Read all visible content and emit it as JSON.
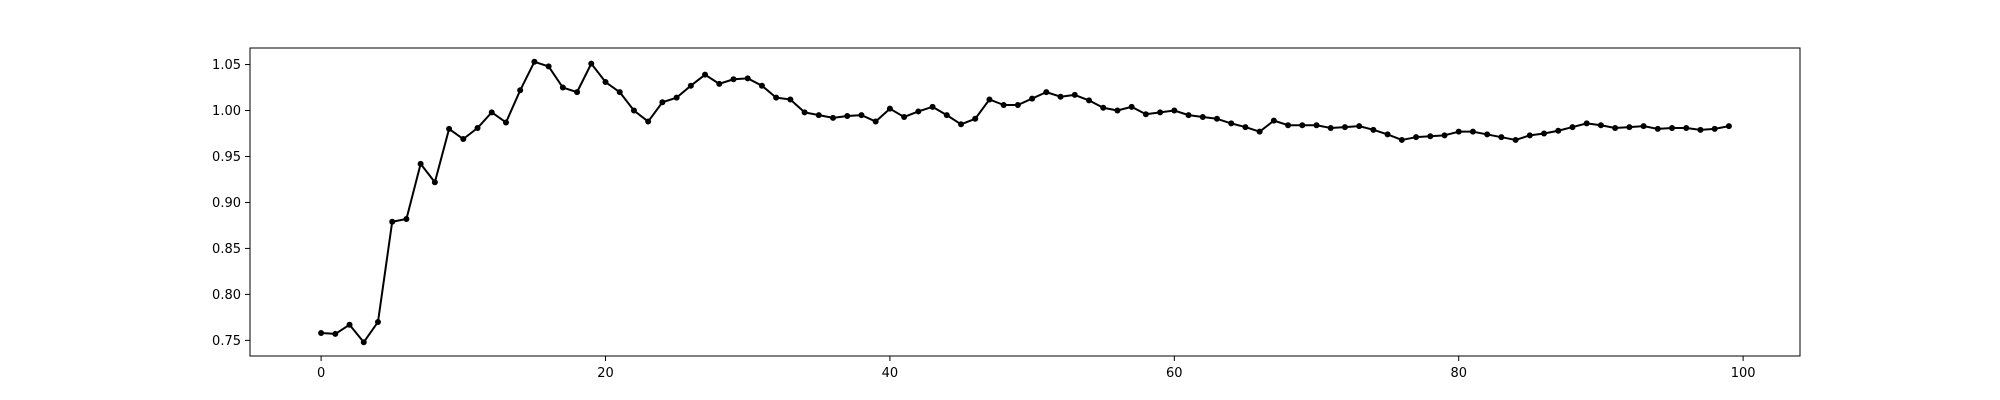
{
  "chart_data": {
    "type": "line",
    "title": "",
    "xlabel": "",
    "ylabel": "",
    "xlim": [
      -5,
      104
    ],
    "ylim": [
      0.733,
      1.068
    ],
    "xticks": [
      0,
      20,
      40,
      60,
      80,
      100
    ],
    "yticks": [
      0.75,
      0.8,
      0.85,
      0.9,
      0.95,
      1.0,
      1.05
    ],
    "xtick_labels": [
      "0",
      "20",
      "40",
      "60",
      "80",
      "100"
    ],
    "ytick_labels": [
      "0.75",
      "0.80",
      "0.85",
      "0.90",
      "0.95",
      "1.00",
      "1.05"
    ],
    "grid": false,
    "legend": "none",
    "series": [
      {
        "color": "#000000",
        "marker": "circle",
        "x": [
          0,
          1,
          2,
          3,
          4,
          5,
          6,
          7,
          8,
          9,
          10,
          11,
          12,
          13,
          14,
          15,
          16,
          17,
          18,
          19,
          20,
          21,
          22,
          23,
          24,
          25,
          26,
          27,
          28,
          29,
          30,
          31,
          32,
          33,
          34,
          35,
          36,
          37,
          38,
          39,
          40,
          41,
          42,
          43,
          44,
          45,
          46,
          47,
          48,
          49,
          50,
          51,
          52,
          53,
          54,
          55,
          56,
          57,
          58,
          59,
          60,
          61,
          62,
          63,
          64,
          65,
          66,
          67,
          68,
          69,
          70,
          71,
          72,
          73,
          74,
          75,
          76,
          77,
          78,
          79,
          80,
          81,
          82,
          83,
          84,
          85,
          86,
          87,
          88,
          89,
          90,
          91,
          92,
          93,
          94,
          95,
          96,
          97,
          98,
          99
        ],
        "values": [
          0.758,
          0.757,
          0.767,
          0.748,
          0.77,
          0.879,
          0.882,
          0.942,
          0.922,
          0.98,
          0.969,
          0.981,
          0.998,
          0.987,
          1.022,
          1.053,
          1.048,
          1.025,
          1.02,
          1.051,
          1.031,
          1.02,
          1.0,
          0.988,
          1.009,
          1.014,
          1.027,
          1.039,
          1.029,
          1.034,
          1.035,
          1.027,
          1.014,
          1.012,
          0.998,
          0.995,
          0.992,
          0.994,
          0.995,
          0.988,
          1.002,
          0.993,
          0.999,
          1.004,
          0.995,
          0.985,
          0.991,
          1.012,
          1.006,
          1.006,
          1.013,
          1.02,
          1.015,
          1.017,
          1.011,
          1.003,
          1.0,
          1.004,
          0.996,
          0.998,
          1.0,
          0.995,
          0.993,
          0.991,
          0.986,
          0.982,
          0.977,
          0.989,
          0.984,
          0.984,
          0.984,
          0.981,
          0.982,
          0.983,
          0.979,
          0.974,
          0.968,
          0.971,
          0.972,
          0.973,
          0.977,
          0.977,
          0.974,
          0.971,
          0.968,
          0.973,
          0.975,
          0.978,
          0.982,
          0.986,
          0.984,
          0.981,
          0.982,
          0.983,
          0.98,
          0.981,
          0.981,
          0.979,
          0.98,
          0.983
        ]
      }
    ]
  }
}
